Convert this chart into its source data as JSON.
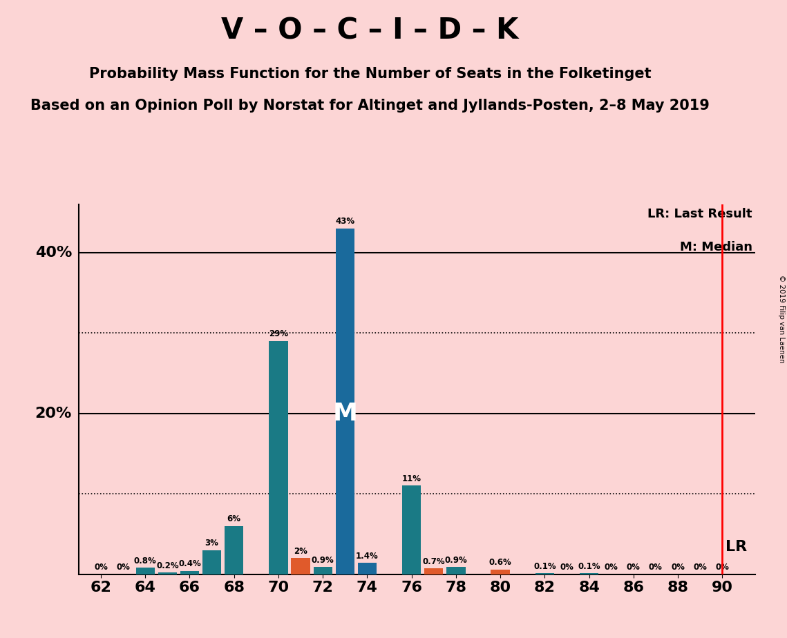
{
  "title1": "V – O – C – I – D – K",
  "title2": "Probability Mass Function for the Number of Seats in the Folketinget",
  "title3": "Based on an Opinion Poll by Norstat for Altinget and Jyllands-Posten, 2–8 May 2019",
  "copyright": "© 2019 Filip van Laenen",
  "background_color": "#fcd5d5",
  "lr_x": 90,
  "median_x": 73,
  "seats": [
    62,
    63,
    64,
    65,
    66,
    67,
    68,
    69,
    70,
    71,
    72,
    73,
    74,
    75,
    76,
    77,
    78,
    79,
    80,
    81,
    82,
    83,
    84,
    85,
    86,
    87,
    88,
    89,
    90
  ],
  "values": [
    0.0,
    0.0,
    0.8,
    0.2,
    0.4,
    3.0,
    6.0,
    0.0,
    29.0,
    2.0,
    0.9,
    43.0,
    1.4,
    0.0,
    11.0,
    0.7,
    0.9,
    0.0,
    0.6,
    0.0,
    0.1,
    0.0,
    0.1,
    0.0,
    0.0,
    0.0,
    0.0,
    0.0,
    0.0
  ],
  "bar_labels": [
    "0%",
    "0%",
    "0.8%",
    "0.2%",
    "0.4%",
    "3%",
    "6%",
    "",
    "29%",
    "2%",
    "0.9%",
    "43%",
    "1.4%",
    "",
    "11%",
    "0.7%",
    "0.9%",
    "",
    "0.6%",
    "",
    "0.1%",
    "0%",
    "0.1%",
    "0%",
    "0%",
    "0%",
    "0%",
    "0%",
    "0%"
  ],
  "bar_colors": [
    "#1a7a85",
    "#1a7a85",
    "#1a7a85",
    "#1a7a85",
    "#1a7a85",
    "#1a7a85",
    "#1a7a85",
    "#1a7a85",
    "#1a7a85",
    "#e05a2b",
    "#1a7a85",
    "#1a6a9c",
    "#1a6a9c",
    "#1a6a9c",
    "#1a7a85",
    "#e05a2b",
    "#1a7a85",
    "#1a7a85",
    "#e05a2b",
    "#1a7a85",
    "#1a7a85",
    "#1a7a85",
    "#1a7a85",
    "#1a7a85",
    "#1a7a85",
    "#1a7a85",
    "#1a7a85",
    "#1a7a85",
    "#1a7a85"
  ],
  "ylim": [
    0,
    46
  ],
  "xticks": [
    62,
    64,
    66,
    68,
    70,
    72,
    74,
    76,
    78,
    80,
    82,
    84,
    86,
    88,
    90
  ],
  "dotted_lines": [
    10,
    30
  ],
  "solid_lines": [
    20,
    40
  ],
  "ytick_positions": [
    20,
    40
  ],
  "ytick_labels": [
    "20%",
    "40%"
  ],
  "lr_label": "LR",
  "median_label": "M",
  "legend_lr": "LR: Last Result",
  "legend_m": "M: Median"
}
